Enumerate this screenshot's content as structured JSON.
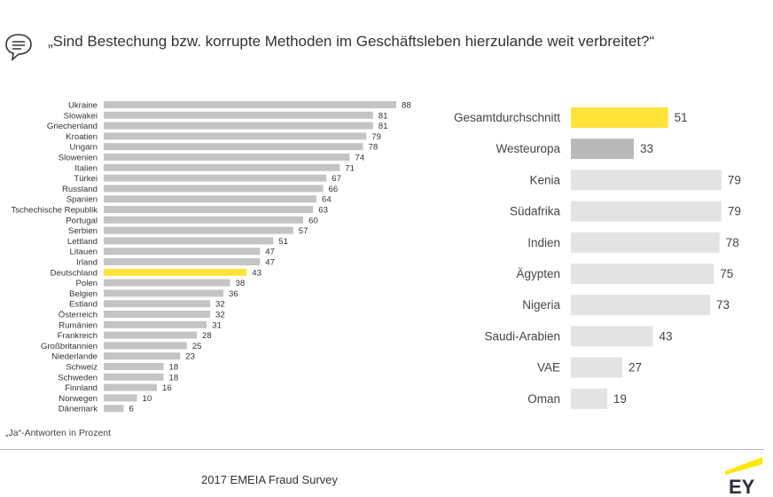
{
  "header": {
    "title": "„Sind Bestechung bzw. korrupte Methoden im Geschäftsleben hierzulande weit verbreitet?“",
    "icon": "speech-bubble-icon"
  },
  "colors": {
    "highlight": "#ffe33b",
    "bar_left": "#c4c4c4",
    "bar_right_grey": "#b9b9b9",
    "bar_right_light": "#e3e3e3",
    "ey_yellow": "#ffe600"
  },
  "chart_data": [
    {
      "type": "bar",
      "orientation": "horizontal",
      "categories": [
        "Ukraine",
        "Slowakei",
        "Griechenland",
        "Kroatien",
        "Ungarn",
        "Slowenien",
        "Italien",
        "Türkei",
        "Russland",
        "Spanien",
        "Tschechische Republik",
        "Portugal",
        "Serbien",
        "Lettland",
        "Litauen",
        "Irland",
        "Deutschland",
        "Polen",
        "Belgien",
        "Estland",
        "Österreich",
        "Rumänien",
        "Frankreich",
        "Großbritannien",
        "Niederlande",
        "Schweiz",
        "Schweden",
        "Finnland",
        "Norwegen",
        "Dänemark"
      ],
      "values": [
        88,
        81,
        81,
        79,
        78,
        74,
        71,
        67,
        66,
        64,
        63,
        60,
        57,
        51,
        47,
        47,
        43,
        38,
        36,
        32,
        32,
        31,
        28,
        25,
        23,
        18,
        18,
        16,
        10,
        6
      ],
      "highlight": "Deutschland",
      "xlim": [
        0,
        100
      ],
      "grid": false
    },
    {
      "type": "bar",
      "orientation": "horizontal",
      "categories": [
        "Gesamtdurchschnitt",
        "Westeuropa",
        "Kenia",
        "Südafrika",
        "Indien",
        "Ägypten",
        "Nigeria",
        "Saudi-Arabien",
        "VAE",
        "Oman"
      ],
      "values": [
        51,
        33,
        79,
        79,
        78,
        75,
        73,
        43,
        27,
        19
      ],
      "highlight": "Gesamtdurchschnitt",
      "secondary": "Westeuropa",
      "xlim": [
        0,
        100
      ],
      "grid": false
    }
  ],
  "footnote": "„Ja“-Antworten in Prozent",
  "footer": {
    "source": "2017 EMEIA Fraud Survey",
    "logo": "EY"
  }
}
